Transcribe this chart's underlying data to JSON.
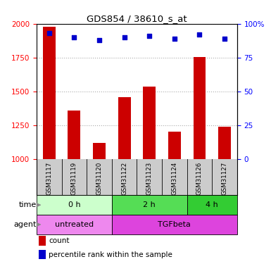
{
  "title": "GDS854 / 38610_s_at",
  "samples": [
    "GSM31117",
    "GSM31119",
    "GSM31120",
    "GSM31122",
    "GSM31123",
    "GSM31124",
    "GSM31126",
    "GSM31127"
  ],
  "counts": [
    1980,
    1360,
    1120,
    1460,
    1535,
    1205,
    1755,
    1240
  ],
  "percentile_ranks": [
    93,
    90,
    88,
    90,
    91,
    89,
    92,
    89
  ],
  "ylim_left": [
    1000,
    2000
  ],
  "yticks_left": [
    1000,
    1250,
    1500,
    1750,
    2000
  ],
  "yticks_right": [
    0,
    25,
    50,
    75,
    100
  ],
  "bar_color": "#cc0000",
  "dot_color": "#0000cc",
  "bar_bottom": 1000,
  "time_groups": [
    {
      "label": "0 h",
      "start": 0,
      "end": 3,
      "color": "#ccffcc"
    },
    {
      "label": "2 h",
      "start": 3,
      "end": 6,
      "color": "#55dd55"
    },
    {
      "label": "4 h",
      "start": 6,
      "end": 8,
      "color": "#33cc33"
    }
  ],
  "agent_groups": [
    {
      "label": "untreated",
      "start": 0,
      "end": 3,
      "color": "#ee88ee"
    },
    {
      "label": "TGFbeta",
      "start": 3,
      "end": 8,
      "color": "#dd44dd"
    }
  ],
  "bar_width": 0.5,
  "sample_box_color": "#cccccc",
  "grid_color": "#aaaaaa",
  "legend_count_color": "#cc0000",
  "legend_dot_color": "#0000cc"
}
